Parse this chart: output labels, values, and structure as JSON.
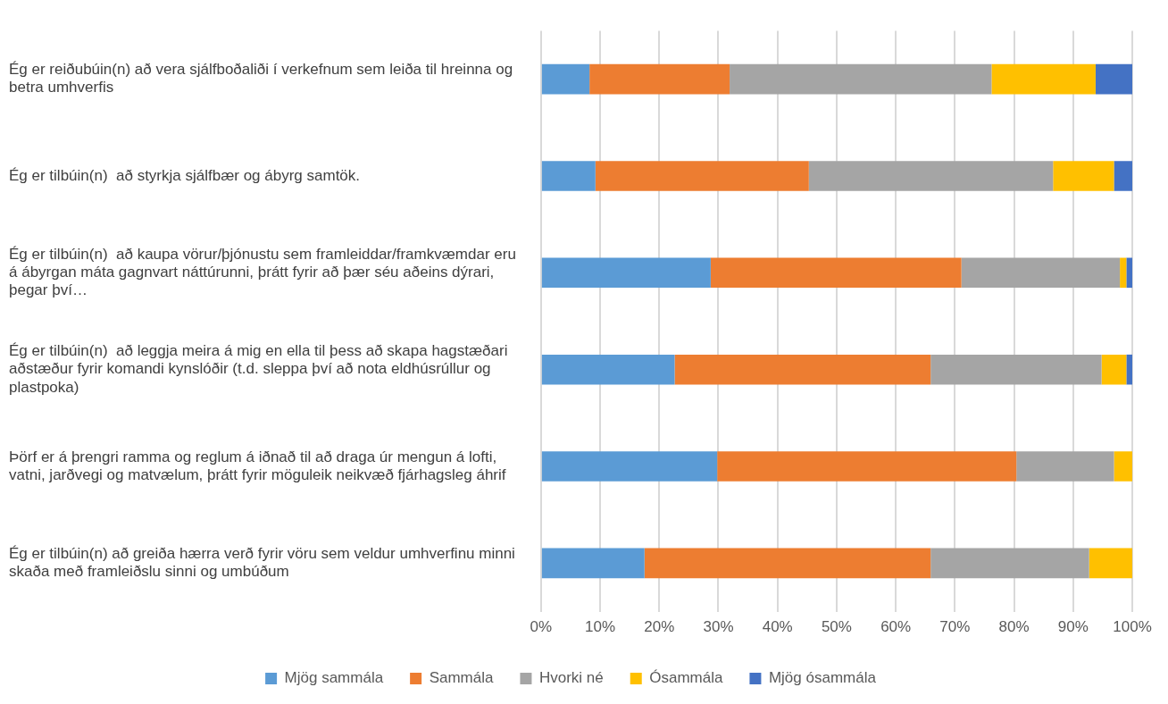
{
  "chart_data": {
    "type": "bar",
    "orientation": "horizontal",
    "stacked": true,
    "categories": [
      "Ég er reiðubúin(n) að vera sjálfboðaliði í verkefnum sem leiða til hreinna og betra umhverfis",
      "Ég er tilbúin(n)  að styrkja sjálfbær og ábyrg samtök.",
      "Ég er tilbúin(n)  að kaupa vörur/þjónustu sem framleiddar/framkvæmdar eru á ábyrgan máta gagnvart náttúrunni, þrátt fyrir að þær séu aðeins dýrari, þegar því…",
      "Ég er tilbúin(n)  að leggja meira á mig en ella til þess að skapa hagstæðari aðstæður fyrir komandi kynslóðir (t.d. sleppa því að nota eldhúsrúllur og plastpoka)",
      "Þörf er á þrengri ramma og reglum á iðnað til að draga úr mengun á lofti, vatni, jarðvegi og matvælum, þrátt fyrir möguleik neikvæð fjárhagsleg áhrif",
      "Ég er tilbúin(n) að greiða hærra verð fyrir vöru sem veldur umhverfinu minni skaða með framleiðslu sinni og umbúðum"
    ],
    "series": [
      {
        "name": "Mjög sammála",
        "color": "#5b9bd5",
        "values": [
          8.2,
          9.2,
          28.7,
          22.6,
          29.8,
          17.5
        ]
      },
      {
        "name": "Sammála",
        "color": "#ed7d31",
        "values": [
          23.7,
          36.1,
          42.4,
          43.3,
          50.6,
          48.4
        ]
      },
      {
        "name": "Hvorki né",
        "color": "#a5a5a5",
        "values": [
          44.3,
          41.3,
          26.8,
          28.9,
          16.5,
          26.8
        ]
      },
      {
        "name": "Ósammála",
        "color": "#ffc000",
        "values": [
          17.6,
          10.3,
          1.1,
          4.2,
          3.1,
          7.3
        ]
      },
      {
        "name": "Mjög ósammála",
        "color": "#4472c4",
        "values": [
          6.2,
          3.1,
          1.0,
          1.0,
          0,
          0
        ]
      }
    ],
    "xlim": [
      0,
      100
    ],
    "xticks": [
      {
        "value": 0,
        "label": "0%"
      },
      {
        "value": 10,
        "label": "10%"
      },
      {
        "value": 20,
        "label": "20%"
      },
      {
        "value": 30,
        "label": "30%"
      },
      {
        "value": 40,
        "label": "40%"
      },
      {
        "value": 50,
        "label": "50%"
      },
      {
        "value": 60,
        "label": "60%"
      },
      {
        "value": 70,
        "label": "70%"
      },
      {
        "value": 80,
        "label": "80%"
      },
      {
        "value": 90,
        "label": "90%"
      },
      {
        "value": 100,
        "label": "100%"
      }
    ],
    "grid": "x",
    "legend": "bottom"
  }
}
